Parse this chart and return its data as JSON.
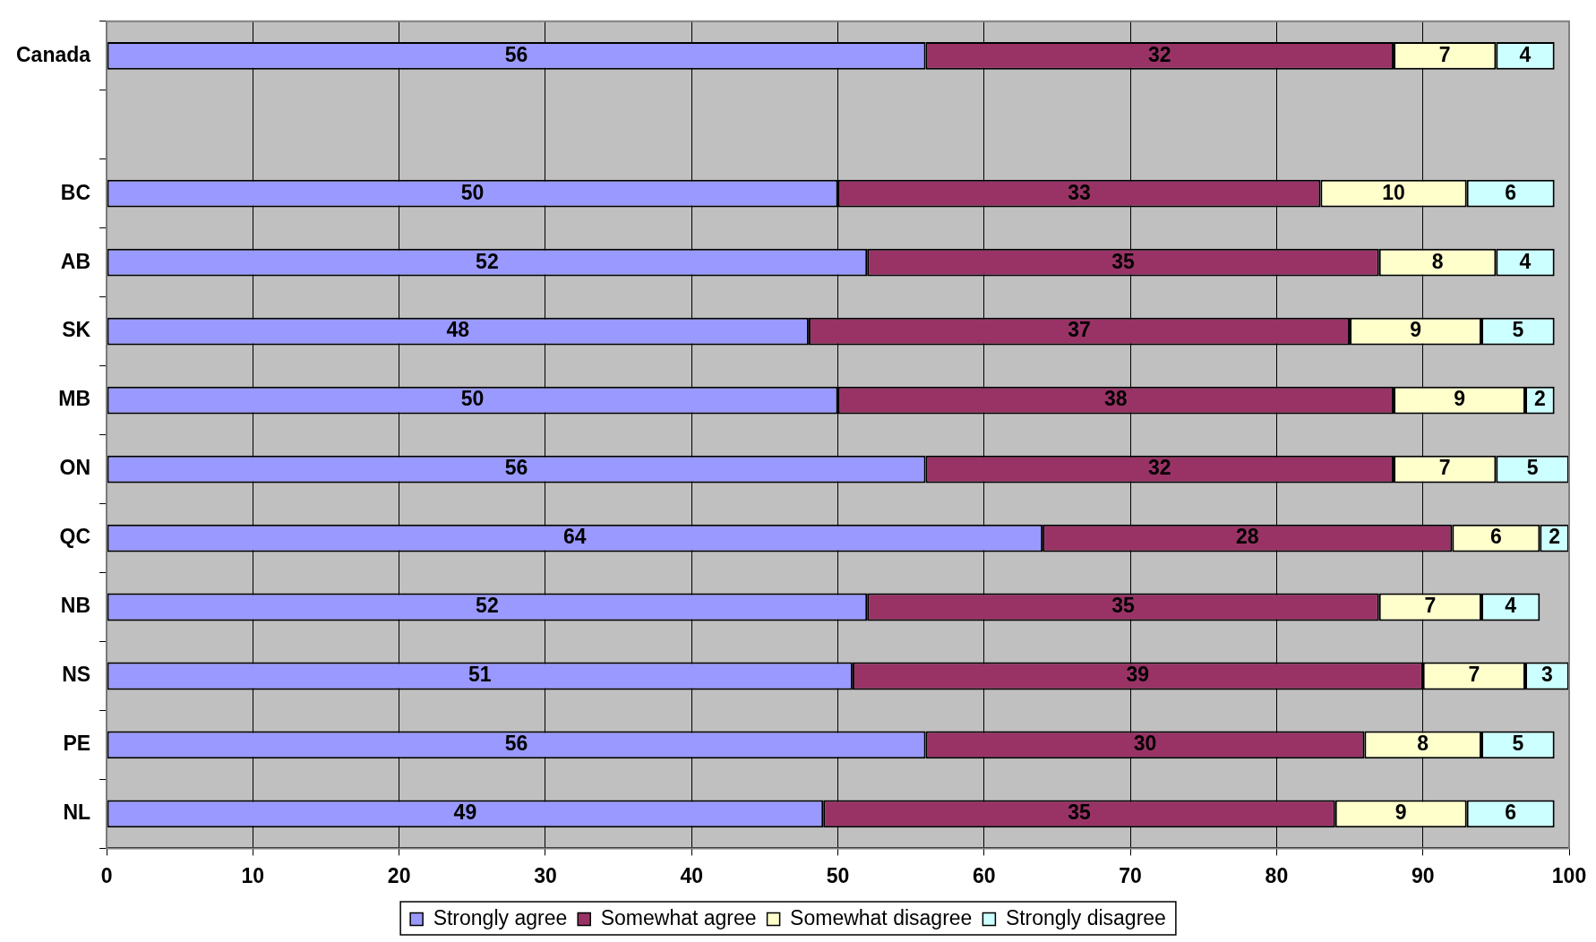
{
  "chart_data": {
    "type": "bar",
    "orientation": "horizontal",
    "stacked": true,
    "categories": [
      "Canada",
      null,
      "BC",
      "AB",
      "SK",
      "MB",
      "ON",
      "QC",
      "NB",
      "NS",
      "PE",
      "NL"
    ],
    "series": [
      {
        "name": "Strongly agree",
        "color": "#9999ff",
        "values": [
          56,
          null,
          50,
          52,
          48,
          50,
          56,
          64,
          52,
          51,
          56,
          49
        ]
      },
      {
        "name": "Somewhat agree",
        "color": "#993366",
        "values": [
          32,
          null,
          33,
          35,
          37,
          38,
          32,
          28,
          35,
          39,
          30,
          35
        ]
      },
      {
        "name": "Somewhat disagree",
        "color": "#ffffcc",
        "values": [
          7,
          null,
          10,
          8,
          9,
          9,
          7,
          6,
          7,
          7,
          8,
          9
        ]
      },
      {
        "name": "Strongly disagree",
        "color": "#ccffff",
        "values": [
          4,
          null,
          6,
          4,
          5,
          2,
          5,
          2,
          4,
          3,
          5,
          6
        ]
      }
    ],
    "xlim": [
      0,
      100
    ],
    "xticks": [
      0,
      10,
      20,
      30,
      40,
      50,
      60,
      70,
      80,
      90,
      100
    ],
    "grid": "x",
    "legend": "bottom",
    "data_labels": true
  }
}
